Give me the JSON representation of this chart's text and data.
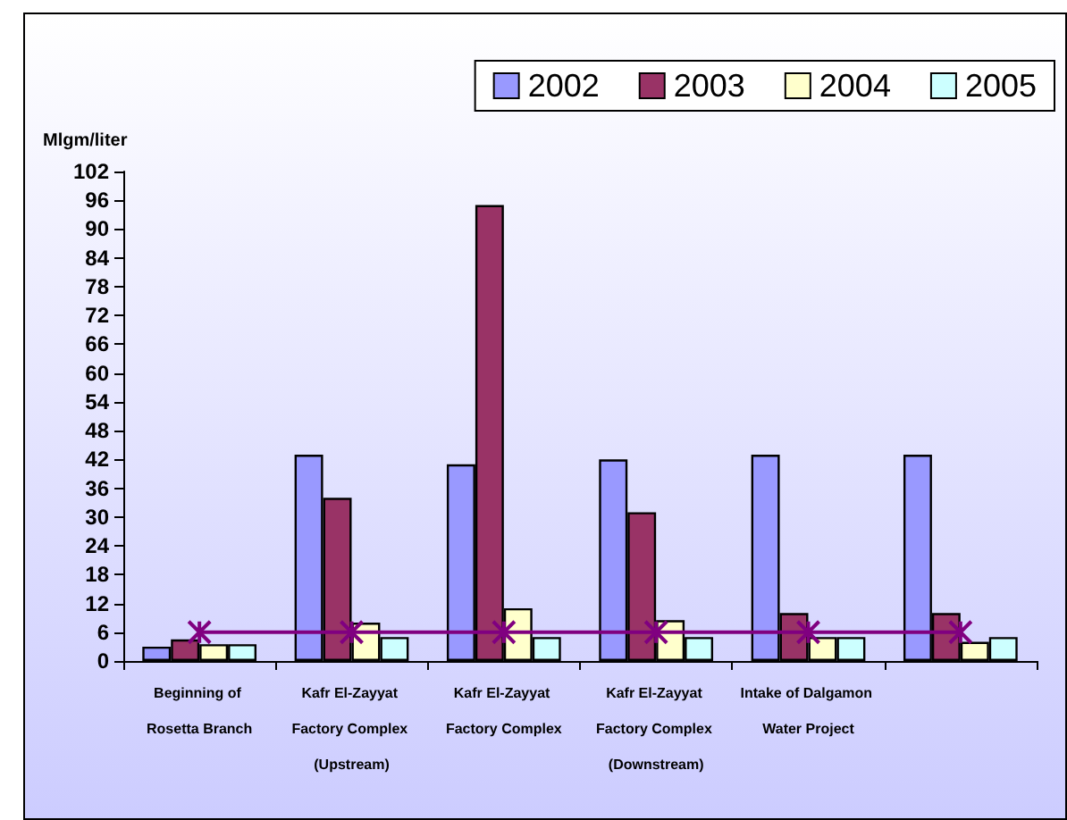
{
  "chart_data": {
    "type": "bar",
    "ylabel": "Mlgm/liter",
    "categories": [
      "Beginning of Rosetta Branch",
      "Kafr El-Zayyat Factory Complex (Upstream)",
      "Kafr El-Zayyat Factory Complex",
      "Kafr El-Zayyat Factory Complex (Downstream)",
      "Intake of Dalgamon Water Project",
      null
    ],
    "series": [
      {
        "name": "2002",
        "color": "#9999ff",
        "values": [
          3,
          43,
          41,
          42,
          43,
          43
        ]
      },
      {
        "name": "2003",
        "color": "#993366",
        "values": [
          4.5,
          34,
          95,
          31,
          10,
          10
        ]
      },
      {
        "name": "2004",
        "color": "#ffffcc",
        "values": [
          3.5,
          8,
          11,
          8.5,
          5,
          4
        ]
      },
      {
        "name": "2005",
        "color": "#ccffff",
        "values": [
          3.5,
          5,
          5,
          5,
          5,
          5
        ]
      },
      {
        "type": "line",
        "color": "#800080",
        "marker": "cross",
        "values": [
          6,
          6,
          6,
          6,
          6,
          6
        ]
      }
    ],
    "ylim": [
      0,
      102
    ],
    "yticks": [
      0,
      6,
      12,
      18,
      24,
      30,
      36,
      42,
      48,
      54,
      60,
      66,
      72,
      78,
      84,
      90,
      96,
      102
    ],
    "grid": false,
    "legend": "top right"
  }
}
